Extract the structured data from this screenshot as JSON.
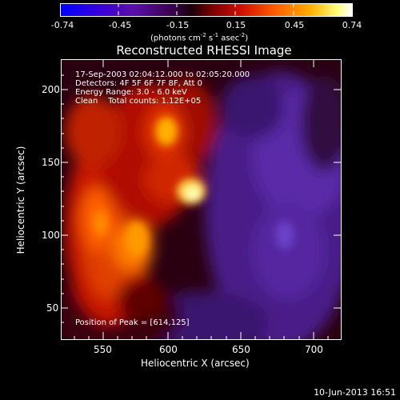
{
  "colorbar": {
    "ticks": [
      "-0.74",
      "-0.45",
      "-0.15",
      "0.15",
      "0.45",
      "0.74"
    ],
    "unit_pre": "(photons cm",
    "unit_exp1": "-2",
    "unit_mid": " s",
    "unit_exp2": "-1",
    "unit_mid2": " asec",
    "unit_exp3": "-2",
    "unit_post": ")",
    "colors": [
      "#0000ff",
      "#5a00c0",
      "#300030",
      "#ff2000",
      "#ff9a00",
      "#ffffff"
    ]
  },
  "title": "Reconstructed RHESSI Image",
  "annotations": {
    "line1": "17-Sep-2003 02:04:12.000 to 02:05:20.000",
    "line2": "Detectors: 4F 5F 6F 7F 8F, Att 0",
    "line3": "Energy Range: 3.0 - 6.0 keV",
    "line4": "Clean    Total counts: 1.12E+05",
    "peak": "Position of Peak = [614,125]"
  },
  "axes": {
    "xlabel": "Heliocentric X (arcsec)",
    "ylabel": "Heliocentric Y (arcsec)",
    "xrange": [
      521,
      714
    ],
    "yrange": [
      27,
      219
    ],
    "xticks": [
      550,
      600,
      650,
      700
    ],
    "yticks": [
      50,
      100,
      150,
      200
    ],
    "xtick_labels": [
      "550",
      "600",
      "650",
      "700"
    ],
    "ytick_labels": [
      "50",
      "100",
      "150",
      "200"
    ]
  },
  "footer": {
    "timestamp": "10-Jun-2013 16:51"
  }
}
